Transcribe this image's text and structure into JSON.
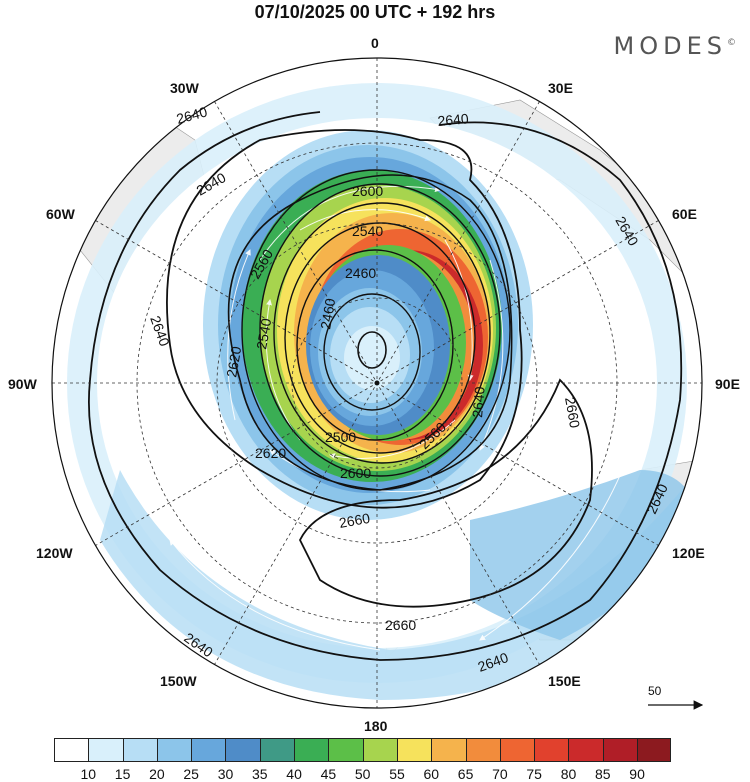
{
  "header": {
    "title": "07/10/2025  00 UTC  + 192 hrs",
    "brand": "MODES",
    "brand_mark": "©"
  },
  "longitude_labels": {
    "n0": "0",
    "n30e": "30E",
    "n60e": "60E",
    "n90e": "90E",
    "n120e": "120E",
    "n150e": "150E",
    "n180": "180",
    "n150w": "150W",
    "n120w": "120W",
    "n90w": "90W",
    "n60w": "60W",
    "n30w": "30W"
  },
  "contour_labels": {
    "c2460": "2460",
    "c2500": "2500",
    "c2540": "2540",
    "c2560": "2560",
    "c2600": "2600",
    "c2620": "2620",
    "c2640": "2640",
    "c2660": "2660"
  },
  "reference_vector": {
    "label": "50"
  },
  "colorbar": {
    "colors": [
      "#ffffff",
      "#d9f0fb",
      "#b7def5",
      "#8cc5ea",
      "#67a7dc",
      "#4f8cc8",
      "#3f9a86",
      "#3aae54",
      "#5cbf48",
      "#a7d44e",
      "#f6e25c",
      "#f5b34c",
      "#f28c3c",
      "#ee6532",
      "#e1412d",
      "#cb2a2b",
      "#b01e27",
      "#8c1a1f"
    ],
    "labels": [
      "10",
      "15",
      "20",
      "25",
      "30",
      "35",
      "40",
      "45",
      "50",
      "55",
      "60",
      "65",
      "70",
      "75",
      "80",
      "85",
      "90"
    ]
  }
}
